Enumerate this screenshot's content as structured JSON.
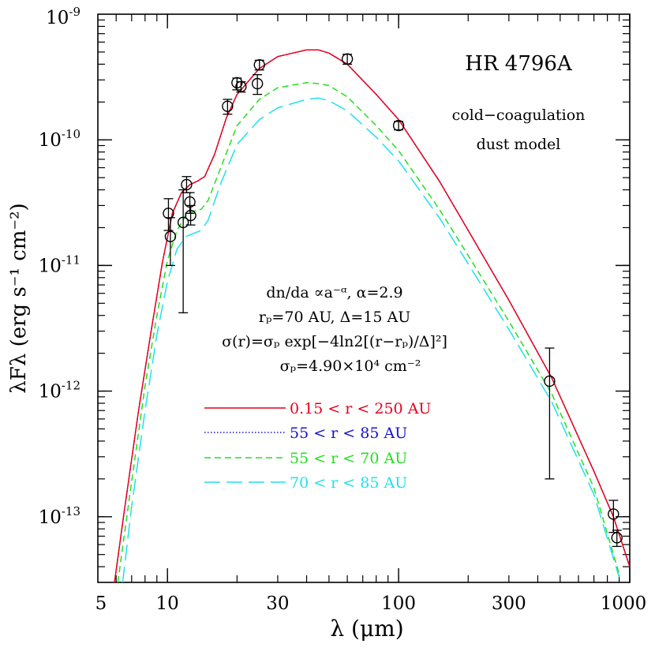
{
  "chart_data": {
    "type": "line",
    "title": "HR 4796A",
    "subtitle_lines": [
      "cold−coagulation",
      "dust model"
    ],
    "xlabel": "λ (μm)",
    "ylabel": "λFλ (erg s⁻¹ cm⁻²)",
    "x_scale": "log",
    "y_scale": "log",
    "xlim": [
      5,
      1000
    ],
    "ylim": [
      3e-14,
      1e-09
    ],
    "x_tick_labels": [
      "5",
      "10",
      "30",
      "100",
      "300",
      "1000"
    ],
    "x_tick_values": [
      5,
      10,
      30,
      100,
      300,
      1000
    ],
    "y_tick_exponents": [
      "-9",
      "-10",
      "-11",
      "-12",
      "-13"
    ],
    "y_tick_base": "10",
    "annotation_lines": [
      "dn/da ∝a⁻ᵅ, α=2.9",
      "rₚ=70 AU, Δ=15 AU",
      "σ(r)=σₚ exp[−4ln2[(r−rₚ)/Δ]²]",
      "σₚ=4.90×10⁴ cm⁻²"
    ],
    "series": [
      {
        "name": "0.15 < r < 250 AU",
        "color": "#e8001c",
        "dash": "solid",
        "x": [
          5.9,
          6.5,
          7.5,
          8.5,
          9.5,
          10.5,
          11.5,
          12.5,
          13.5,
          14.5,
          16,
          18,
          20,
          25,
          30,
          40,
          45,
          50,
          60,
          80,
          100,
          150,
          200,
          300,
          460,
          700,
          850,
          1000
        ],
        "y": [
          3e-14,
          1.1e-13,
          7e-13,
          3e-12,
          1.05e-11,
          2.6e-11,
          3.8e-11,
          4.4e-11,
          4.7e-11,
          5.1e-11,
          7.7e-11,
          1.5e-10,
          2.3e-10,
          3.7e-10,
          4.6e-10,
          5.2e-10,
          5.2e-10,
          4.9e-10,
          4e-10,
          2.3e-10,
          1.45e-10,
          4.7e-11,
          1.9e-11,
          5.3e-12,
          1.27e-12,
          2.3e-13,
          1e-13,
          4e-14
        ]
      },
      {
        "name": "55 < r < 85 AU",
        "color": "#1414d2",
        "dash": "dotted",
        "x": [
          5.9,
          6.5,
          7.5,
          8.5,
          9.5,
          10.5,
          11.5,
          12.5,
          13.5,
          14.5,
          16,
          18,
          20,
          25,
          30,
          40,
          45,
          50,
          60,
          80,
          100,
          150,
          200,
          300,
          460,
          700,
          850,
          1000
        ],
        "y": [
          3e-14,
          1.1e-13,
          7e-13,
          3e-12,
          1.05e-11,
          2.6e-11,
          3.8e-11,
          4.4e-11,
          4.7e-11,
          5.1e-11,
          7.7e-11,
          1.5e-10,
          2.3e-10,
          3.7e-10,
          4.6e-10,
          5.2e-10,
          5.2e-10,
          4.9e-10,
          4e-10,
          2.3e-10,
          1.45e-10,
          4.7e-11,
          1.9e-11,
          5.3e-12,
          1.27e-12,
          2.3e-13,
          1e-13,
          4e-14
        ]
      },
      {
        "name": "55 < r < 70 AU",
        "color": "#22e01e",
        "dash": "dashed",
        "x": [
          6.1,
          7,
          8,
          9,
          10,
          11,
          12,
          13,
          14,
          15,
          17,
          20,
          25,
          30,
          40,
          45,
          50,
          60,
          80,
          100,
          150,
          200,
          300,
          460,
          700,
          900
        ],
        "y": [
          3e-14,
          1.9e-13,
          1.1e-12,
          4e-12,
          1.1e-11,
          1.9e-11,
          2.5e-11,
          2.7e-11,
          2.8e-11,
          3.3e-11,
          6e-11,
          1.3e-10,
          2.1e-10,
          2.6e-10,
          2.85e-10,
          2.8e-10,
          2.7e-10,
          2.2e-10,
          1.3e-10,
          8.2e-11,
          2.8e-11,
          1.2e-11,
          3.6e-12,
          9.5e-13,
          1.7e-13,
          3.5e-14
        ]
      },
      {
        "name": "70 < r < 85 AU",
        "color": "#1fe1ee",
        "dash": "longdash",
        "x": [
          6.4,
          7,
          8,
          9,
          10,
          11,
          12,
          13,
          14,
          15,
          17,
          20,
          25,
          30,
          40,
          45,
          50,
          60,
          80,
          100,
          150,
          200,
          300,
          460,
          700,
          900
        ],
        "y": [
          3e-14,
          1.2e-13,
          7e-13,
          2.8e-12,
          7.5e-12,
          1.35e-11,
          1.7e-11,
          1.8e-11,
          1.9e-11,
          2.3e-11,
          4.5e-11,
          9.2e-11,
          1.45e-10,
          1.8e-10,
          2.1e-10,
          2.15e-10,
          2.05e-10,
          1.7e-10,
          1.05e-10,
          6.8e-11,
          2.4e-11,
          1.03e-11,
          3.1e-12,
          8.2e-13,
          1.5e-13,
          3.3e-14
        ]
      }
    ],
    "observations": [
      {
        "x": 10.1,
        "y": 2.6e-11,
        "ylo": 1.9e-11,
        "yhi": 3.4e-11
      },
      {
        "x": 10.3,
        "y": 1.7e-11,
        "ylo": 1e-11,
        "yhi": 2.4e-11
      },
      {
        "x": 11.7,
        "y": 2.2e-11,
        "ylo": 4.2e-12,
        "yhi": 4e-11
      },
      {
        "x": 12.1,
        "y": 4.4e-11,
        "ylo": 3.8e-11,
        "yhi": 5.1e-11
      },
      {
        "x": 12.5,
        "y": 3.2e-11,
        "ylo": 2.6e-11,
        "yhi": 3.8e-11
      },
      {
        "x": 12.6,
        "y": 2.5e-11,
        "ylo": 2.1e-11,
        "yhi": 3e-11
      },
      {
        "x": 18.2,
        "y": 1.85e-10,
        "ylo": 1.6e-10,
        "yhi": 2.1e-10
      },
      {
        "x": 20.0,
        "y": 2.85e-10,
        "ylo": 2.5e-10,
        "yhi": 3.1e-10
      },
      {
        "x": 20.8,
        "y": 2.65e-10,
        "ylo": 2.4e-10,
        "yhi": 2.9e-10
      },
      {
        "x": 24.5,
        "y": 2.8e-10,
        "ylo": 2.3e-10,
        "yhi": 3.3e-10
      },
      {
        "x": 25.0,
        "y": 3.95e-10,
        "ylo": 3.6e-10,
        "yhi": 4.3e-10
      },
      {
        "x": 60.0,
        "y": 4.4e-10,
        "ylo": 4e-10,
        "yhi": 4.8e-10
      },
      {
        "x": 100.0,
        "y": 1.3e-10,
        "ylo": 1.2e-10,
        "yhi": 1.4e-10
      },
      {
        "x": 450.0,
        "y": 1.2e-12,
        "ylo": 2e-13,
        "yhi": 2.2e-12
      },
      {
        "x": 850.0,
        "y": 1.05e-13,
        "ylo": 7.5e-14,
        "yhi": 1.35e-13
      },
      {
        "x": 880.0,
        "y": 6.8e-14,
        "ylo": 5.8e-14,
        "yhi": 7.8e-14
      }
    ]
  }
}
